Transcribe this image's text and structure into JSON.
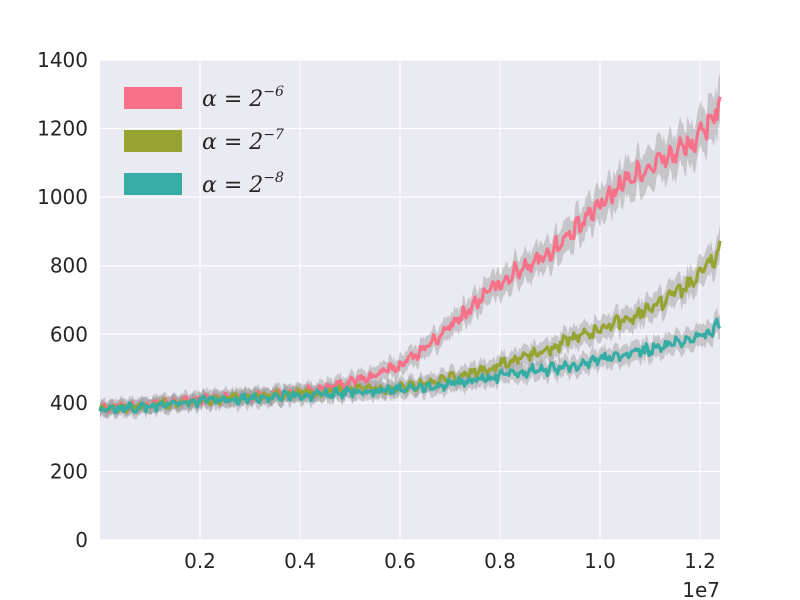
{
  "chart_data": {
    "type": "line",
    "x_multiplier_label": "1e7",
    "xlim": [
      0,
      12400000
    ],
    "ylim": [
      0,
      1400
    ],
    "xticks": [
      2000000,
      4000000,
      6000000,
      8000000,
      10000000,
      12000000
    ],
    "xtick_labels": [
      "0.2",
      "0.4",
      "0.6",
      "0.8",
      "1.0",
      "1.2"
    ],
    "yticks": [
      0,
      200,
      400,
      600,
      800,
      1000,
      1200,
      1400
    ],
    "ytick_labels": [
      "0",
      "200",
      "400",
      "600",
      "800",
      "1000",
      "1200",
      "1400"
    ],
    "grid": true,
    "legend_position": "top-left",
    "x": [
      0,
      500000,
      1000000,
      1500000,
      2000000,
      2500000,
      3000000,
      3500000,
      4000000,
      4500000,
      5000000,
      5500000,
      6000000,
      6500000,
      7000000,
      7500000,
      8000000,
      8500000,
      9000000,
      9500000,
      10000000,
      10500000,
      11000000,
      11500000,
      12000000,
      12400000
    ],
    "series": [
      {
        "name": "α = 2^−6",
        "color": "#f77189",
        "values": [
          385,
          390,
          395,
          400,
          410,
          415,
          420,
          425,
          430,
          440,
          460,
          480,
          510,
          560,
          620,
          690,
          750,
          800,
          840,
          900,
          980,
          1050,
          1090,
          1130,
          1170,
          1280
        ]
      },
      {
        "name": "α = 2^−7",
        "color": "#97a431",
        "values": [
          385,
          388,
          392,
          398,
          405,
          412,
          418,
          422,
          428,
          432,
          438,
          440,
          445,
          455,
          470,
          490,
          510,
          535,
          560,
          590,
          610,
          640,
          680,
          720,
          770,
          850
        ]
      },
      {
        "name": "α = 2^−8",
        "color": "#36ada4",
        "values": [
          380,
          385,
          390,
          395,
          405,
          410,
          415,
          418,
          420,
          425,
          430,
          435,
          440,
          445,
          455,
          465,
          478,
          490,
          500,
          510,
          525,
          540,
          555,
          570,
          590,
          630
        ]
      }
    ],
    "legend": [
      {
        "base": "α = 2",
        "exp": "−6"
      },
      {
        "base": "α = 2",
        "exp": "−7"
      },
      {
        "base": "α = 2",
        "exp": "−8"
      }
    ]
  }
}
